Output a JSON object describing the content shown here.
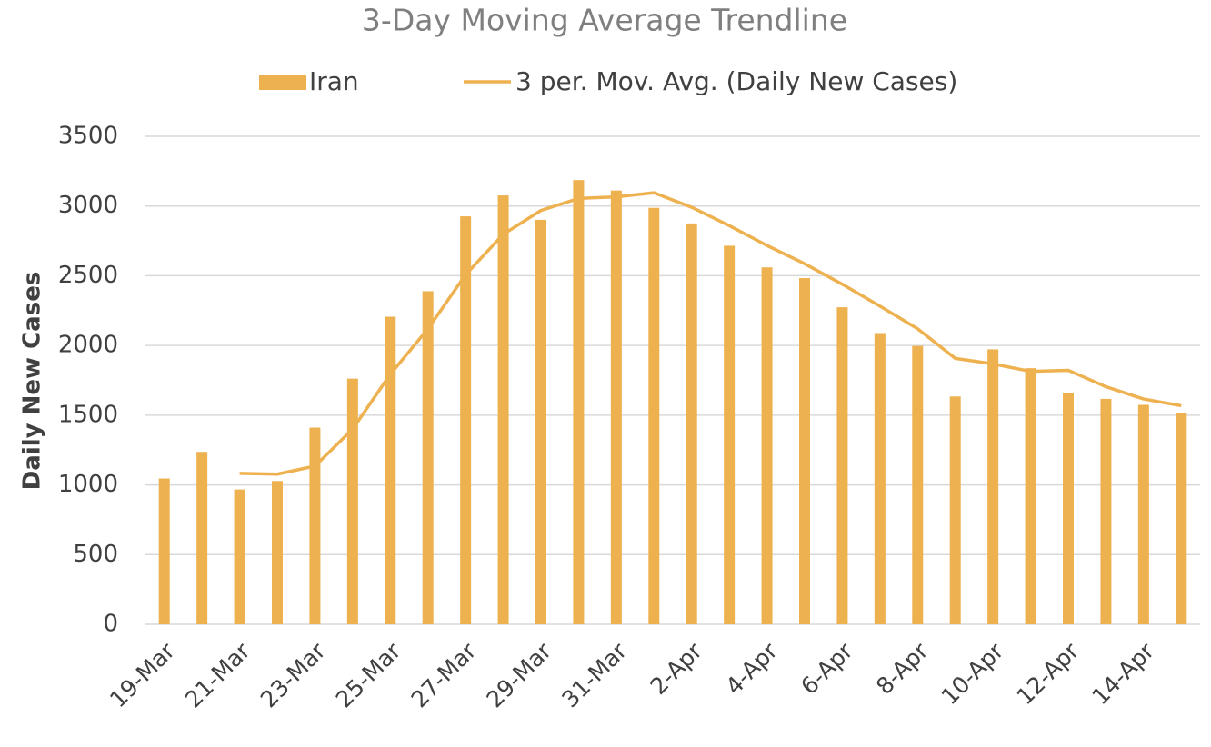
{
  "chart_data": {
    "type": "bar",
    "title": "3-Day Moving Average Trendline",
    "y_label": "Daily New Cases",
    "categories": [
      "19-Mar",
      null,
      "21-Mar",
      null,
      "23-Mar",
      null,
      "25-Mar",
      null,
      "27-Mar",
      null,
      "29-Mar",
      null,
      "31-Mar",
      null,
      "2-Apr",
      null,
      "4-Apr",
      null,
      "6-Apr",
      null,
      "8-Apr",
      null,
      "10-Apr",
      null,
      "12-Apr",
      null,
      "14-Apr",
      null
    ],
    "series": [
      {
        "name": "Iran",
        "type": "bar",
        "color": "#eeb150",
        "values": [
          1046,
          1237,
          967,
          1028,
          1411,
          1762,
          2206,
          2389,
          2926,
          3076,
          2901,
          3186,
          3111,
          2987,
          2875,
          2715,
          2560,
          2483,
          2274,
          2089,
          1997,
          1634,
          1972,
          1837,
          1657,
          1617,
          1574,
          1512
        ]
      },
      {
        "name": "3 per. Mov. Avg. (Daily New Cases)",
        "type": "line",
        "color": "#eeb150",
        "values": [
          null,
          null,
          1083,
          1077,
          1135,
          1400,
          1793,
          2119,
          2507,
          2797,
          2968,
          3054,
          3066,
          3095,
          2991,
          2859,
          2717,
          2586,
          2439,
          2282,
          2120,
          1907,
          1868,
          1814,
          1822,
          1704,
          1616,
          1568
        ]
      }
    ],
    "ylim": [
      0,
      3500
    ],
    "yticks": [
      0,
      500,
      1000,
      1500,
      2000,
      2500,
      3000,
      3500
    ],
    "grid": true,
    "legend": "top"
  }
}
